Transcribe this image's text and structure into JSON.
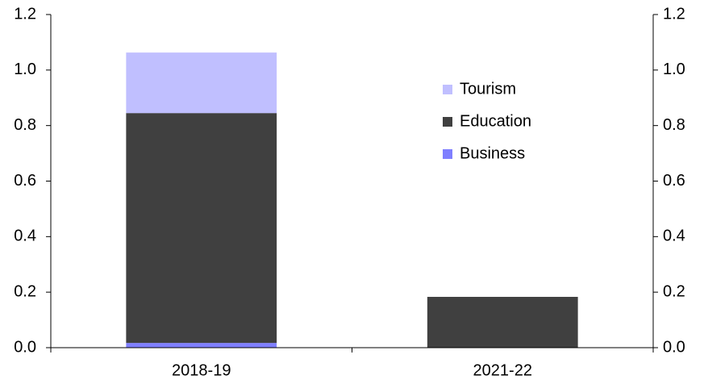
{
  "chart_data": {
    "type": "bar",
    "stacked": true,
    "categories": [
      "2018-19",
      "2021-22"
    ],
    "series": [
      {
        "name": "Business",
        "color": "#7f7fff",
        "values": [
          0.017,
          0
        ]
      },
      {
        "name": "Education",
        "color": "#404040",
        "values": [
          0.828,
          0.183
        ]
      },
      {
        "name": "Tourism",
        "color": "#c0bfff",
        "values": [
          0.218,
          0
        ]
      }
    ],
    "ylim": [
      0,
      1.2
    ],
    "yticks": [
      {
        "value": 0,
        "label": "0.0"
      },
      0.2,
      0.4,
      0.6,
      0.8,
      {
        "value": 1,
        "label": "1.0"
      },
      1.2
    ],
    "y2lim": [
      0,
      1.2
    ],
    "y2ticks": [
      {
        "value": 0,
        "label": "0.0"
      },
      0.2,
      0.4,
      0.6,
      0.8,
      {
        "value": 1,
        "label": "1.0"
      },
      1.2
    ],
    "grid": false
  }
}
